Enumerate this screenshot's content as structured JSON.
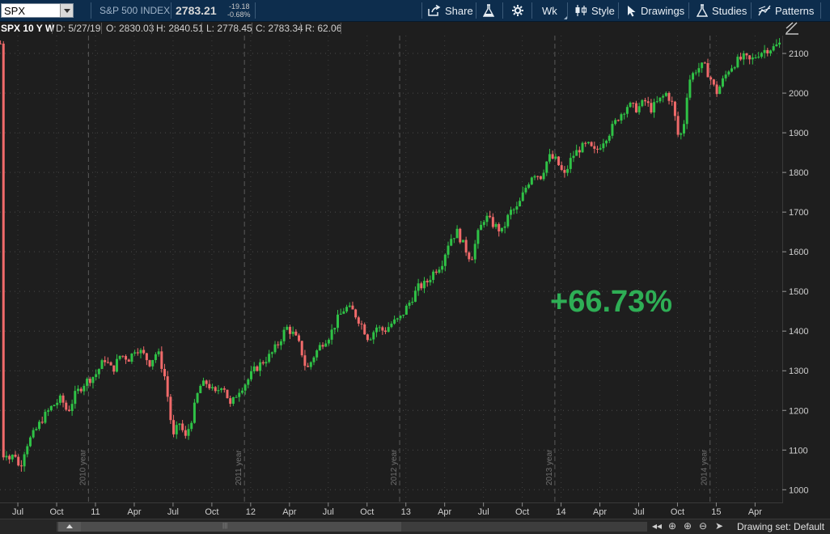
{
  "toolbar": {
    "symbol": "SPX",
    "index_name": "S&P 500 INDEX",
    "last_price": "2783.21",
    "change_abs": "-19.18",
    "change_pct": "-0.68%",
    "buttons": {
      "share": "Share",
      "aggregation": "Wk",
      "style": "Style",
      "drawings": "Drawings",
      "studies": "Studies",
      "patterns": "Patterns"
    }
  },
  "info": {
    "title": "SPX 10 Y W",
    "date": "D: 5/27/19",
    "open": "O: 2830.03",
    "high": "H: 2840.51",
    "low": "L: 2778.45",
    "close": "C: 2783.34",
    "range": "R: 62.06"
  },
  "percent_label": "+66.73%",
  "bottom": {
    "drawing_set": "Drawing set: Default"
  },
  "colors": {
    "up": "#2fc246",
    "down": "#f06a6a",
    "percent": "#2eae55",
    "toolbar": "#0d2d4d"
  },
  "chart_data": {
    "type": "candlestick",
    "ylim": [
      970,
      2145
    ],
    "y_ticks": [
      1000,
      1100,
      1200,
      1300,
      1400,
      1500,
      1600,
      1700,
      1800,
      1900,
      2000,
      2100
    ],
    "x_ticks": [
      {
        "label": "Jul",
        "pos": 2009.5
      },
      {
        "label": "Oct",
        "pos": 2009.75
      },
      {
        "label": "11",
        "pos": 2010.0
      },
      {
        "label": "Apr",
        "pos": 2010.25
      },
      {
        "label": "Jul",
        "pos": 2010.5
      },
      {
        "label": "Oct",
        "pos": 2010.75
      },
      {
        "label": "12",
        "pos": 2011.0
      },
      {
        "label": "Apr",
        "pos": 2011.25
      },
      {
        "label": "Jul",
        "pos": 2011.5
      },
      {
        "label": "Oct",
        "pos": 2011.75
      },
      {
        "label": "13",
        "pos": 2012.0
      },
      {
        "label": "Apr",
        "pos": 2012.25
      },
      {
        "label": "Jul",
        "pos": 2012.5
      },
      {
        "label": "Oct",
        "pos": 2012.75
      },
      {
        "label": "14",
        "pos": 2013.0
      },
      {
        "label": "Apr",
        "pos": 2013.25
      },
      {
        "label": "Jul",
        "pos": 2013.5
      },
      {
        "label": "Oct",
        "pos": 2013.75
      },
      {
        "label": "15",
        "pos": 2014.0
      },
      {
        "label": "Apr",
        "pos": 2014.25
      }
    ],
    "year_dividers": [
      {
        "label": "2010 year",
        "pos": 2009.955
      },
      {
        "label": "2011 year",
        "pos": 2010.96
      },
      {
        "label": "2012 year",
        "pos": 2011.96
      },
      {
        "label": "2013 year",
        "pos": 2012.96
      },
      {
        "label": "2014 year",
        "pos": 2013.96
      }
    ],
    "x_range": [
      2009.385,
      2014.42
    ],
    "price_path": [
      [
        2009.39,
        1070
      ],
      [
        2009.42,
        1100
      ],
      [
        2009.45,
        1075
      ],
      [
        2009.48,
        1095
      ],
      [
        2009.51,
        1050
      ],
      [
        2009.55,
        1110
      ],
      [
        2009.6,
        1140
      ],
      [
        2009.66,
        1180
      ],
      [
        2009.72,
        1210
      ],
      [
        2009.78,
        1230
      ],
      [
        2009.82,
        1195
      ],
      [
        2009.87,
        1240
      ],
      [
        2009.93,
        1270
      ],
      [
        2010.0,
        1290
      ],
      [
        2010.06,
        1330
      ],
      [
        2010.11,
        1300
      ],
      [
        2010.16,
        1340
      ],
      [
        2010.22,
        1330
      ],
      [
        2010.26,
        1360
      ],
      [
        2010.31,
        1340
      ],
      [
        2010.35,
        1320
      ],
      [
        2010.4,
        1350
      ],
      [
        2010.45,
        1280
      ],
      [
        2010.5,
        1130
      ],
      [
        2010.54,
        1170
      ],
      [
        2010.58,
        1130
      ],
      [
        2010.62,
        1180
      ],
      [
        2010.67,
        1260
      ],
      [
        2010.72,
        1270
      ],
      [
        2010.77,
        1240
      ],
      [
        2010.82,
        1270
      ],
      [
        2010.87,
        1210
      ],
      [
        2010.92,
        1250
      ],
      [
        2010.97,
        1270
      ],
      [
        2011.02,
        1300
      ],
      [
        2011.07,
        1320
      ],
      [
        2011.13,
        1340
      ],
      [
        2011.18,
        1370
      ],
      [
        2011.23,
        1410
      ],
      [
        2011.28,
        1390
      ],
      [
        2011.32,
        1360
      ],
      [
        2011.36,
        1300
      ],
      [
        2011.41,
        1340
      ],
      [
        2011.46,
        1370
      ],
      [
        2011.51,
        1390
      ],
      [
        2011.56,
        1430
      ],
      [
        2011.61,
        1460
      ],
      [
        2011.66,
        1450
      ],
      [
        2011.71,
        1420
      ],
      [
        2011.76,
        1380
      ],
      [
        2011.81,
        1410
      ],
      [
        2011.86,
        1400
      ],
      [
        2011.91,
        1420
      ],
      [
        2011.96,
        1430
      ],
      [
        2012.02,
        1470
      ],
      [
        2012.08,
        1510
      ],
      [
        2012.13,
        1520
      ],
      [
        2012.18,
        1550
      ],
      [
        2012.23,
        1570
      ],
      [
        2012.28,
        1630
      ],
      [
        2012.33,
        1650
      ],
      [
        2012.38,
        1610
      ],
      [
        2012.42,
        1580
      ],
      [
        2012.46,
        1640
      ],
      [
        2012.51,
        1690
      ],
      [
        2012.56,
        1670
      ],
      [
        2012.62,
        1650
      ],
      [
        2012.67,
        1700
      ],
      [
        2012.72,
        1710
      ],
      [
        2012.77,
        1760
      ],
      [
        2012.82,
        1800
      ],
      [
        2012.87,
        1790
      ],
      [
        2012.92,
        1840
      ],
      [
        2012.97,
        1830
      ],
      [
        2013.02,
        1790
      ],
      [
        2013.07,
        1840
      ],
      [
        2013.12,
        1860
      ],
      [
        2013.17,
        1870
      ],
      [
        2013.22,
        1850
      ],
      [
        2013.27,
        1880
      ],
      [
        2013.31,
        1900
      ],
      [
        2013.37,
        1940
      ],
      [
        2013.43,
        1970
      ],
      [
        2013.49,
        1960
      ],
      [
        2013.54,
        1980
      ],
      [
        2013.58,
        1960
      ],
      [
        2013.63,
        1980
      ],
      [
        2013.68,
        2000
      ],
      [
        2013.72,
        1970
      ],
      [
        2013.76,
        1880
      ],
      [
        2013.79,
        1920
      ],
      [
        2013.82,
        2030
      ],
      [
        2013.87,
        2060
      ],
      [
        2013.92,
        2070
      ],
      [
        2013.96,
        2040
      ],
      [
        2014.0,
        2000
      ],
      [
        2014.04,
        2030
      ],
      [
        2014.08,
        2060
      ],
      [
        2014.13,
        2080
      ],
      [
        2014.18,
        2090
      ],
      [
        2014.22,
        2080
      ],
      [
        2014.27,
        2100
      ],
      [
        2014.32,
        2110
      ],
      [
        2014.37,
        2115
      ],
      [
        2014.41,
        2125
      ]
    ]
  }
}
